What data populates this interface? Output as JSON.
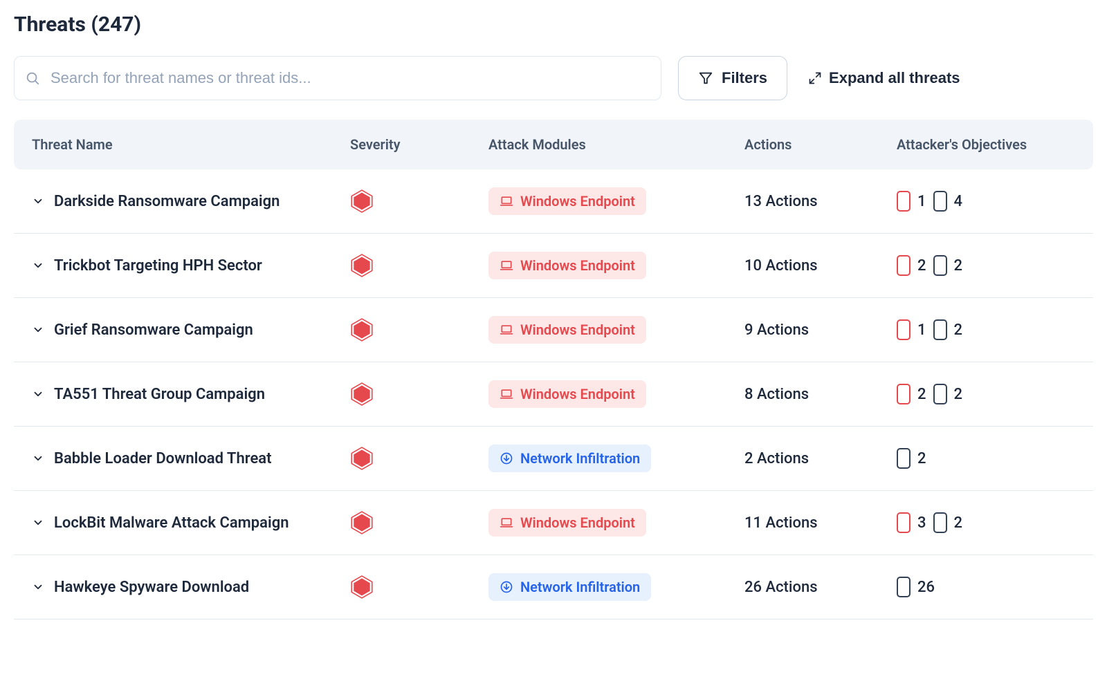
{
  "title": "Threats (247)",
  "search": {
    "placeholder": "Search for threat names or threat ids..."
  },
  "filters_label": "Filters",
  "expand_label": "Expand all threats",
  "colors": {
    "text": "#1e293b",
    "muted": "#475569",
    "placeholder": "#94a3b8",
    "border": "#e2e8f0",
    "head_bg": "#f1f5f9",
    "badge_red_bg": "#fde7e7",
    "badge_red_fg": "#e5484d",
    "badge_blue_bg": "#e7f0fd",
    "badge_blue_fg": "#2563eb",
    "sev_hex_fill": "#e5484d",
    "obj_red": "#e5484d",
    "obj_dark": "#334155"
  },
  "columns": [
    "Threat Name",
    "Severity",
    "Attack Modules",
    "Actions",
    "Attacker's Objectives"
  ],
  "module_types": {
    "windows": {
      "label": "Windows Endpoint",
      "icon": "laptop",
      "palette": "red"
    },
    "network": {
      "label": "Network Infiltration",
      "icon": "download-circle",
      "palette": "blue"
    }
  },
  "rows": [
    {
      "name": "Darkside Ransomware Campaign",
      "module": "windows",
      "actions": "13 Actions",
      "objectives": [
        {
          "c": "red",
          "n": 1
        },
        {
          "c": "dark",
          "n": 4
        }
      ]
    },
    {
      "name": "Trickbot Targeting HPH Sector",
      "module": "windows",
      "actions": "10 Actions",
      "objectives": [
        {
          "c": "red",
          "n": 2
        },
        {
          "c": "dark",
          "n": 2
        }
      ]
    },
    {
      "name": "Grief Ransomware Campaign",
      "module": "windows",
      "actions": "9 Actions",
      "objectives": [
        {
          "c": "red",
          "n": 1
        },
        {
          "c": "dark",
          "n": 2
        }
      ]
    },
    {
      "name": "TA551 Threat Group Campaign",
      "module": "windows",
      "actions": "8 Actions",
      "objectives": [
        {
          "c": "red",
          "n": 2
        },
        {
          "c": "dark",
          "n": 2
        }
      ]
    },
    {
      "name": "Babble Loader Download Threat",
      "module": "network",
      "actions": "2 Actions",
      "objectives": [
        {
          "c": "dark",
          "n": 2
        }
      ]
    },
    {
      "name": "LockBit Malware Attack Campaign",
      "module": "windows",
      "actions": "11 Actions",
      "objectives": [
        {
          "c": "red",
          "n": 3
        },
        {
          "c": "dark",
          "n": 2
        }
      ]
    },
    {
      "name": "Hawkeye Spyware Download",
      "module": "network",
      "actions": "26 Actions",
      "objectives": [
        {
          "c": "dark",
          "n": 26
        }
      ]
    }
  ]
}
